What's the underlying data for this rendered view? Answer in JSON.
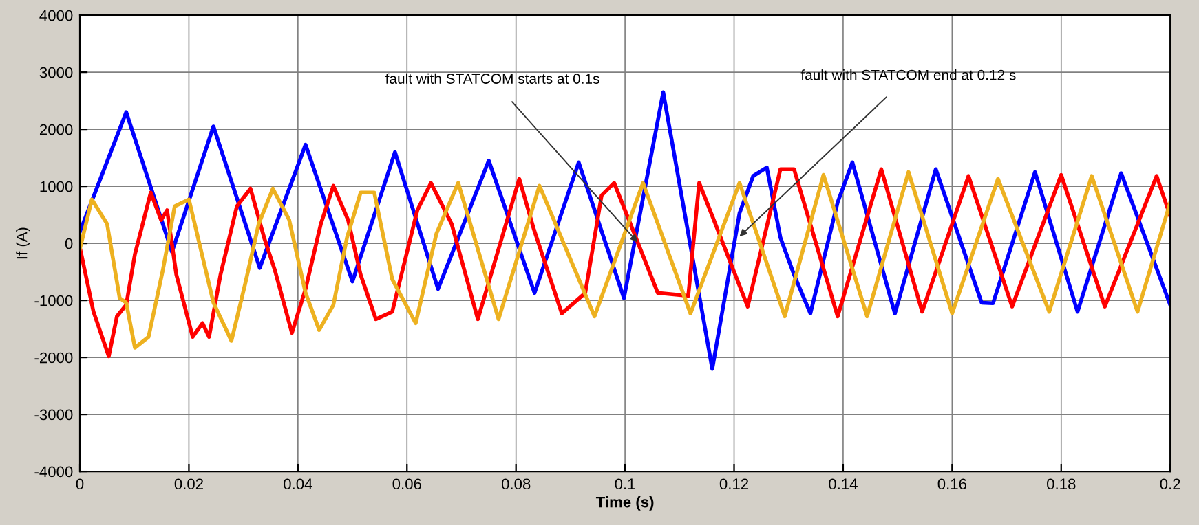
{
  "chart_data": {
    "type": "line",
    "xlabel": "Time (s)",
    "ylabel": "If (A)",
    "xlim": [
      0,
      0.2
    ],
    "ylim": [
      -4000,
      4000
    ],
    "xticks": [
      0,
      0.02,
      0.04,
      0.06,
      0.08,
      0.1,
      0.12,
      0.14,
      0.16,
      0.18,
      0.2
    ],
    "yticks": [
      -4000,
      -3000,
      -2000,
      -1000,
      0,
      1000,
      2000,
      3000,
      4000
    ],
    "grid": true,
    "legend": false,
    "marker": "none",
    "line_style": "solid",
    "annotations": [
      {
        "text": "fault with STATCOM starts at 0.1s",
        "x": 0.1023,
        "y": 20
      },
      {
        "text": "fault with STATCOM end at 0.12 s",
        "x": 0.121,
        "y": 120
      }
    ],
    "series": [
      {
        "color": "#0000ff",
        "x": [
          0,
          0.0085,
          0.0169,
          0.0245,
          0.033,
          0.0414,
          0.05,
          0.0578,
          0.0657,
          0.075,
          0.0834,
          0.0915,
          0.0998,
          0.107,
          0.116,
          0.121,
          0.1235,
          0.126,
          0.1285,
          0.131,
          0.134,
          0.139,
          0.1417,
          0.1495,
          0.157,
          0.1654,
          0.1675,
          0.1752,
          0.183,
          0.191,
          0.2
        ],
        "values": [
          200,
          2300,
          -150,
          2050,
          -430,
          1730,
          -670,
          1600,
          -800,
          1450,
          -870,
          1420,
          -960,
          2650,
          -2200,
          530,
          1180,
          1330,
          100,
          -550,
          -1230,
          720,
          1420,
          -1230,
          1300,
          -1040,
          -1050,
          1250,
          -1200,
          1230,
          -1080
        ]
      },
      {
        "color": "#ff0000",
        "x": [
          0,
          0.0025,
          0.0053,
          0.0068,
          0.0085,
          0.0101,
          0.013,
          0.0149,
          0.016,
          0.0177,
          0.0207,
          0.0225,
          0.0237,
          0.0258,
          0.0288,
          0.0313,
          0.0338,
          0.0358,
          0.0389,
          0.0414,
          0.0442,
          0.0465,
          0.0492,
          0.0515,
          0.0543,
          0.0573,
          0.0619,
          0.0644,
          0.0682,
          0.073,
          0.0806,
          0.0833,
          0.0884,
          0.0927,
          0.0957,
          0.098,
          0.101,
          0.106,
          0.1116,
          0.1136,
          0.116,
          0.1225,
          0.1285,
          0.131,
          0.139,
          0.147,
          0.1545,
          0.163,
          0.171,
          0.18,
          0.188,
          0.1975,
          0.2
        ],
        "values": [
          -70,
          -1200,
          -1980,
          -1280,
          -1080,
          -190,
          890,
          410,
          580,
          -550,
          -1640,
          -1400,
          -1640,
          -550,
          650,
          960,
          100,
          -480,
          -1570,
          -800,
          340,
          1010,
          410,
          -550,
          -1330,
          -1200,
          580,
          1060,
          340,
          -1330,
          1130,
          240,
          -1230,
          -870,
          840,
          1060,
          340,
          -870,
          -920,
          1060,
          480,
          -1110,
          1300,
          1300,
          -1280,
          1300,
          -1200,
          1180,
          -1110,
          1200,
          -1110,
          1180,
          480
        ]
      },
      {
        "color": "#edb120",
        "x": [
          0,
          0.0022,
          0.005,
          0.0073,
          0.0085,
          0.0101,
          0.0126,
          0.0152,
          0.0174,
          0.02,
          0.0245,
          0.0278,
          0.0303,
          0.0328,
          0.0354,
          0.0384,
          0.0414,
          0.0439,
          0.0465,
          0.049,
          0.0515,
          0.054,
          0.0573,
          0.0616,
          0.0654,
          0.0694,
          0.0768,
          0.0843,
          0.0944,
          0.1033,
          0.112,
          0.121,
          0.1293,
          0.1364,
          0.1444,
          0.152,
          0.16,
          0.1684,
          0.1778,
          0.1856,
          0.194,
          0.2
        ],
        "values": [
          -100,
          770,
          340,
          -960,
          -1040,
          -1830,
          -1640,
          -480,
          650,
          770,
          -1040,
          -1710,
          -720,
          340,
          960,
          410,
          -870,
          -1520,
          -1080,
          100,
          890,
          890,
          -630,
          -1400,
          170,
          1060,
          -1330,
          1010,
          -1280,
          1060,
          -1230,
          1060,
          -1280,
          1200,
          -1280,
          1250,
          -1230,
          1130,
          -1200,
          1180,
          -1200,
          720
        ]
      }
    ]
  }
}
